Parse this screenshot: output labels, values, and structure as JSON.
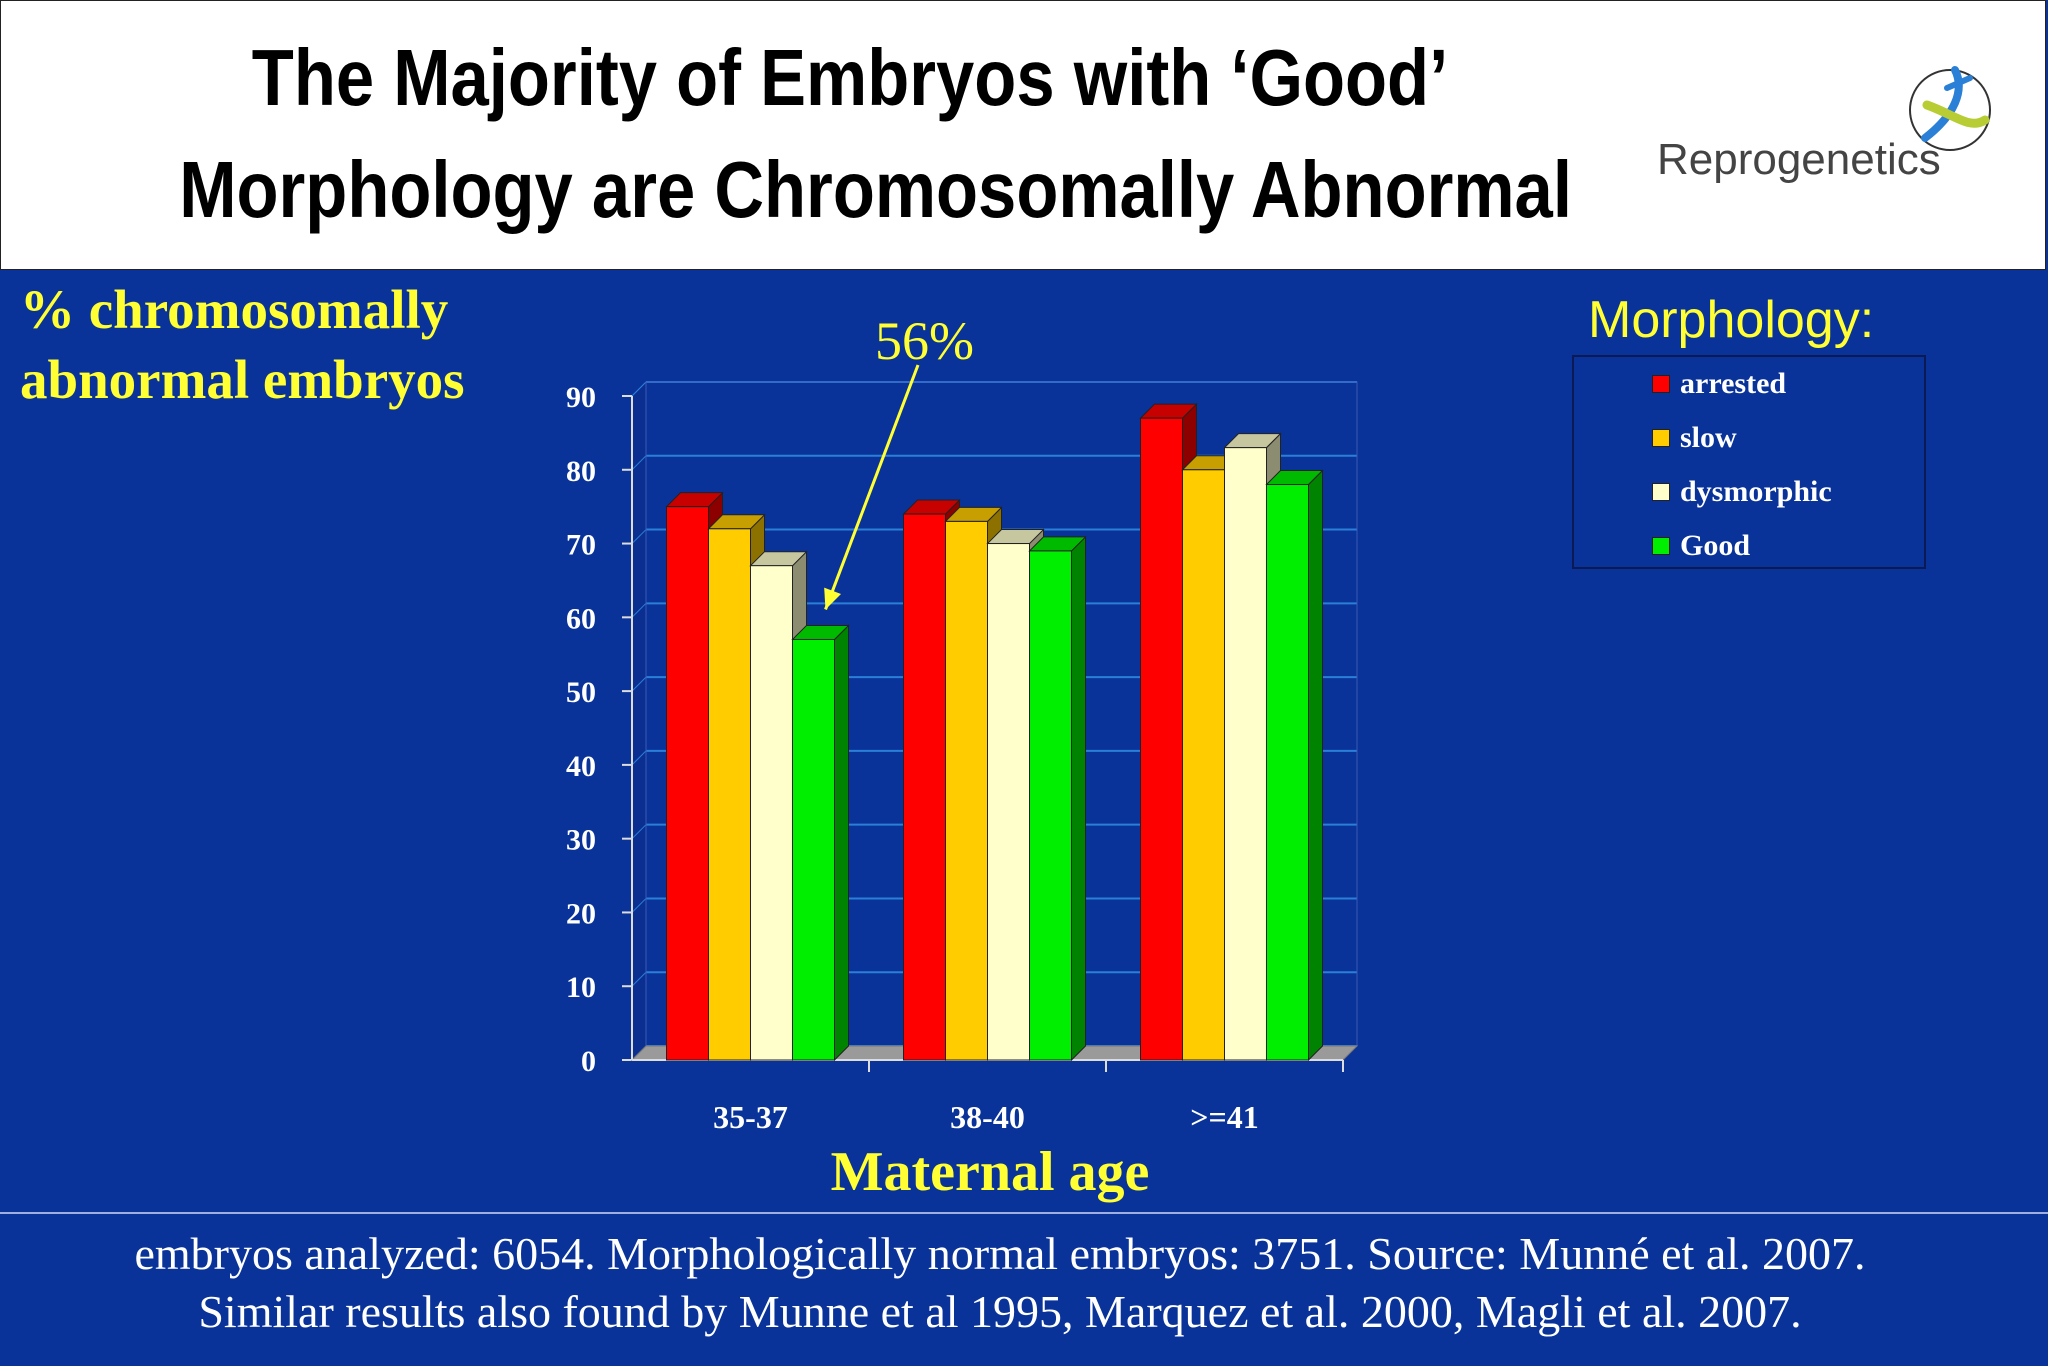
{
  "slide": {
    "title_line1": "The Majority of Embryos with ‘Good’",
    "title_line2": "Morphology are Chromosomally Abnormal",
    "logo_text": "Reprogenetics",
    "footer_line1": "embryos analyzed: 6054. Morphologically normal embryos: 3751. Source: Munné et al. 2007.",
    "footer_line2": "Similar results also found by Munne et al 1995, Marquez et al. 2000, Magli et al. 2007."
  },
  "chart_data": {
    "type": "bar",
    "ylabel_line1": "% chromosomally",
    "ylabel_line2": "abnormal embryos",
    "xlabel": "Maternal age",
    "categories": [
      "35-37",
      "38-40",
      ">=41"
    ],
    "ylim": [
      0,
      90
    ],
    "yticks": [
      "0",
      "10",
      "20",
      "30",
      "40",
      "50",
      "60",
      "70",
      "80",
      "90"
    ],
    "grid": true,
    "legend_title": "Morphology:",
    "legend_position": "top-right",
    "series": [
      {
        "name": "arrested",
        "color": "#ff0000",
        "values": [
          75,
          74,
          87
        ]
      },
      {
        "name": "slow",
        "color": "#ffcc00",
        "values": [
          72,
          73,
          80
        ]
      },
      {
        "name": "dysmorphic",
        "color": "#ffffcc",
        "values": [
          67,
          70,
          83
        ]
      },
      {
        "name": "Good",
        "color": "#00ee00",
        "values": [
          57,
          69,
          78
        ]
      }
    ],
    "annotation": "56%"
  }
}
